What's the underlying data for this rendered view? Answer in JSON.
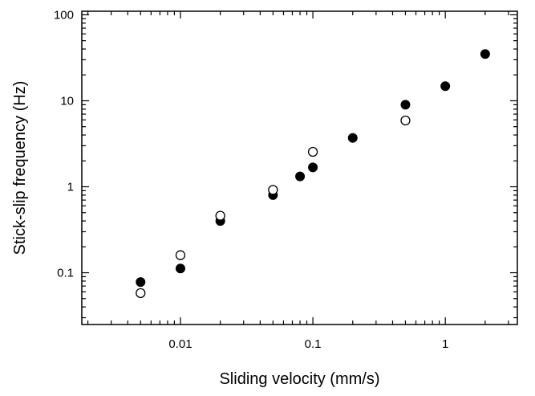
{
  "chart_data": {
    "type": "scatter",
    "xlabel": "Sliding velocity (mm/s)",
    "ylabel": "Stick-slip frequency (Hz)",
    "x_scale": "log",
    "y_scale": "log",
    "xlim": [
      0.0018,
      3.5
    ],
    "ylim": [
      0.025,
      110
    ],
    "x_ticks": [
      {
        "value": 0.01,
        "label": "0.01"
      },
      {
        "value": 0.1,
        "label": "0.1"
      },
      {
        "value": 1,
        "label": "1"
      }
    ],
    "y_ticks": [
      {
        "value": 0.1,
        "label": "0.1"
      },
      {
        "value": 1,
        "label": "1"
      },
      {
        "value": 10,
        "label": "10"
      },
      {
        "value": 100,
        "label": "100"
      }
    ],
    "grid": false,
    "legend": "none",
    "series": [
      {
        "marker": "filled-circle",
        "color": "#000000",
        "points": [
          {
            "x": 0.005,
            "y": 0.078
          },
          {
            "x": 0.01,
            "y": 0.112
          },
          {
            "x": 0.02,
            "y": 0.4
          },
          {
            "x": 0.05,
            "y": 0.8
          },
          {
            "x": 0.08,
            "y": 1.32
          },
          {
            "x": 0.1,
            "y": 1.68
          },
          {
            "x": 0.2,
            "y": 3.7
          },
          {
            "x": 0.5,
            "y": 9.0
          },
          {
            "x": 1,
            "y": 14.8
          },
          {
            "x": 2,
            "y": 35
          }
        ]
      },
      {
        "marker": "open-circle",
        "color": "#000000",
        "points": [
          {
            "x": 0.005,
            "y": 0.058
          },
          {
            "x": 0.01,
            "y": 0.16
          },
          {
            "x": 0.02,
            "y": 0.46
          },
          {
            "x": 0.05,
            "y": 0.92
          },
          {
            "x": 0.1,
            "y": 2.55
          },
          {
            "x": 0.5,
            "y": 5.9
          }
        ]
      }
    ]
  }
}
